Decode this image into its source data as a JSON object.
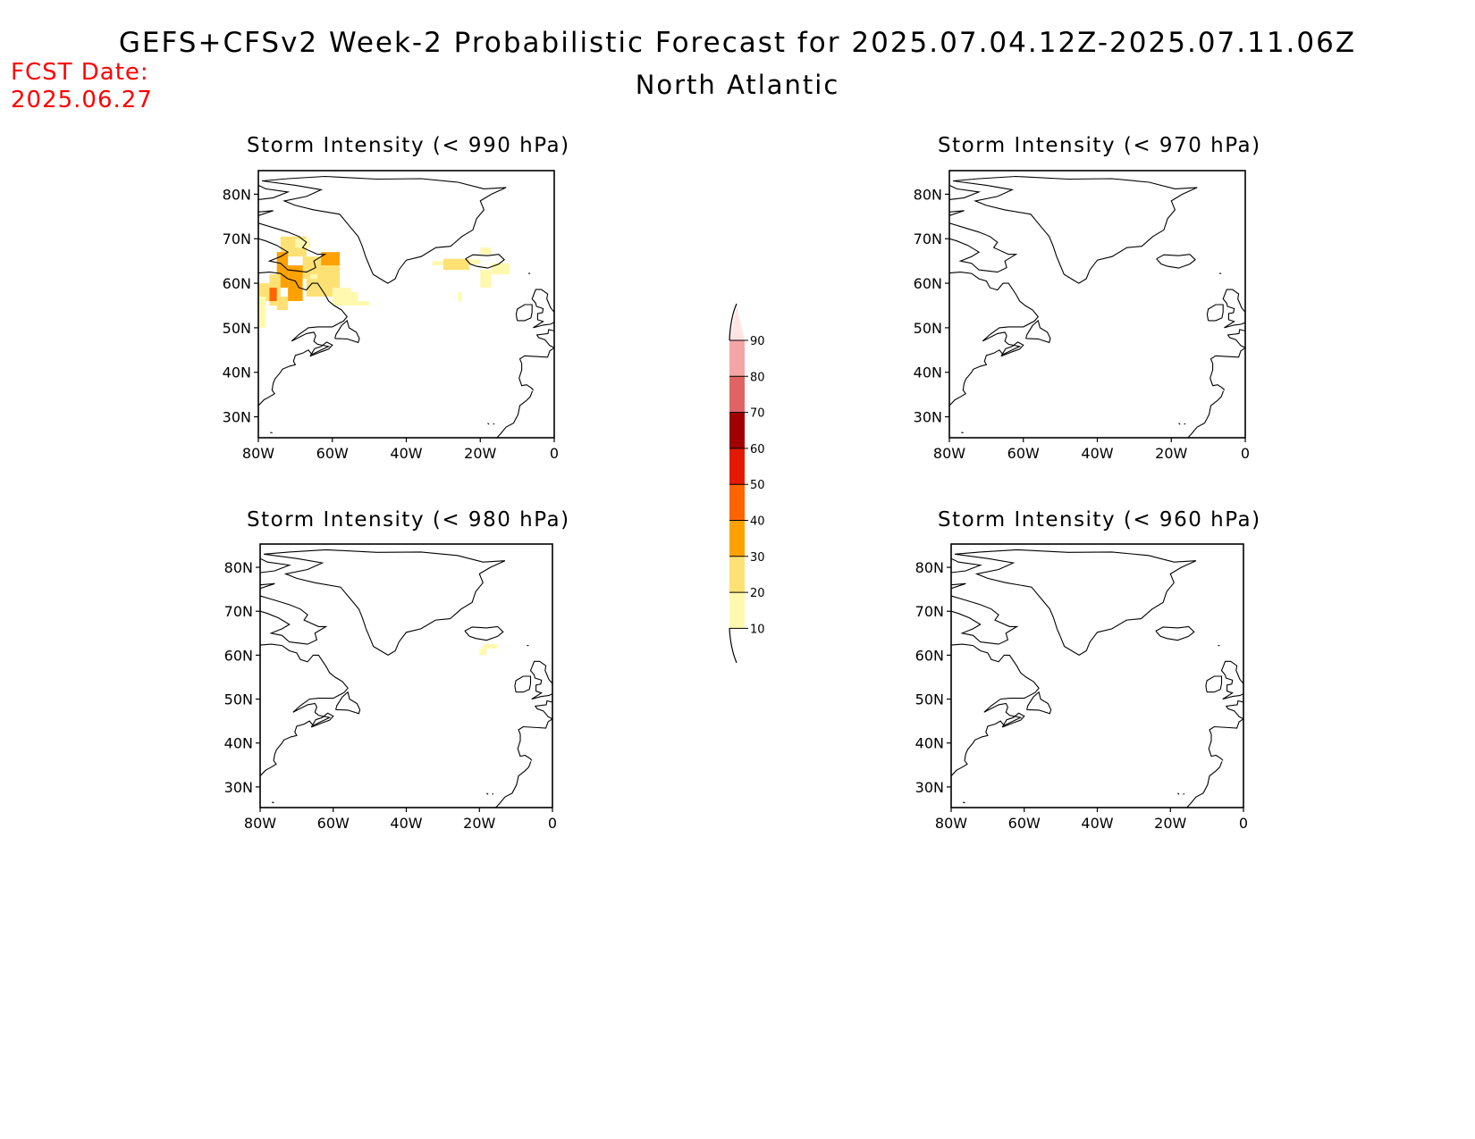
{
  "header": {
    "title": "GEFS+CFSv2 Week-2 Probabilistic Forecast for 2025.07.04.12Z-2025.07.11.06Z",
    "subtitle": "North Atlantic",
    "fcst_label": "FCST Date:",
    "fcst_date": "2025.06.27"
  },
  "panels": [
    {
      "title": "Storm Intensity (< 990 hPa)",
      "has_shading": true
    },
    {
      "title": "Storm Intensity (< 970 hPa)",
      "has_shading": false
    },
    {
      "title": "Storm Intensity (< 980 hPa)",
      "has_shading": true
    },
    {
      "title": "Storm Intensity (< 960 hPa)",
      "has_shading": false
    }
  ],
  "axes": {
    "lon_ticks": [
      "80W",
      "60W",
      "40W",
      "20W",
      "0"
    ],
    "lat_ticks": [
      "80N",
      "70N",
      "60N",
      "50N",
      "40N",
      "30N"
    ]
  },
  "colorbar": {
    "levels": [
      "10",
      "20",
      "30",
      "40",
      "50",
      "60",
      "70",
      "80",
      "90"
    ],
    "colors": [
      "#fff9b0",
      "#fee175",
      "#ffa100",
      "#ff6400",
      "#e31a00",
      "#a00000",
      "#e06464",
      "#f4a6a6",
      "#ffe4e4"
    ]
  }
}
